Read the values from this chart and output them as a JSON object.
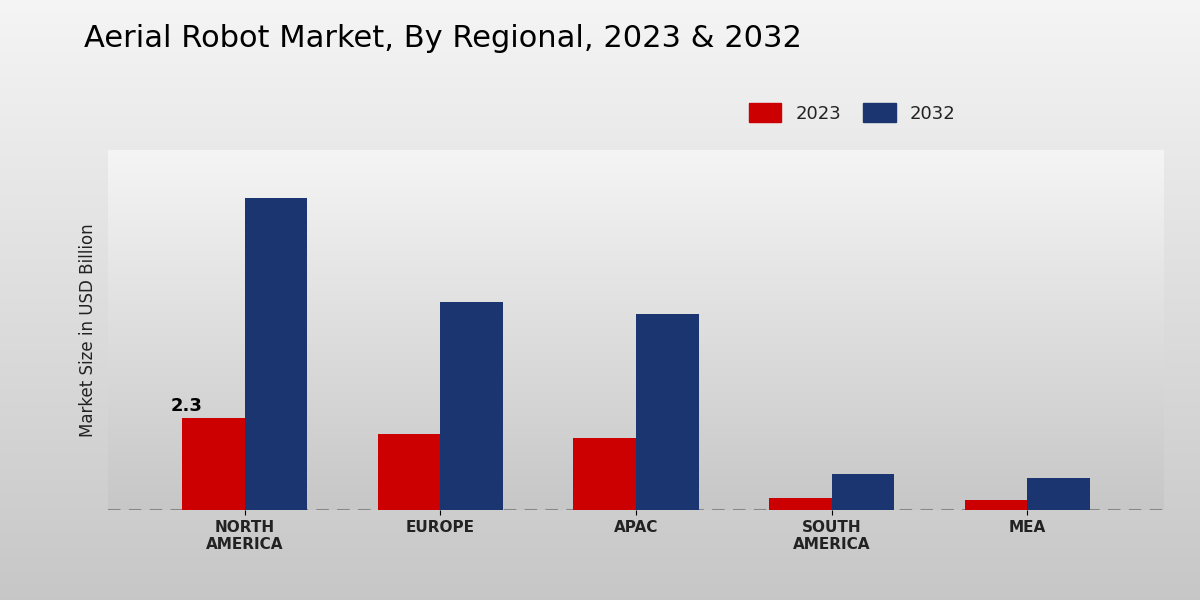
{
  "title": "Aerial Robot Market, By Regional, 2023 & 2032",
  "ylabel": "Market Size in USD Billion",
  "categories": [
    "NORTH\nAMERICA",
    "EUROPE",
    "APAC",
    "SOUTH\nAMERICA",
    "MEA"
  ],
  "values_2023": [
    2.3,
    1.9,
    1.8,
    0.3,
    0.25
  ],
  "values_2032": [
    7.8,
    5.2,
    4.9,
    0.9,
    0.8
  ],
  "color_2023": "#cc0000",
  "color_2032": "#1a3570",
  "annotation": "2.3",
  "title_fontsize": 22,
  "ylabel_fontsize": 12,
  "legend_labels": [
    "2023",
    "2032"
  ],
  "legend_fontsize": 13,
  "bar_width": 0.32,
  "ylim": [
    0,
    9
  ],
  "grad_top": "#f0f0f0",
  "grad_bottom": "#c8c8c8"
}
